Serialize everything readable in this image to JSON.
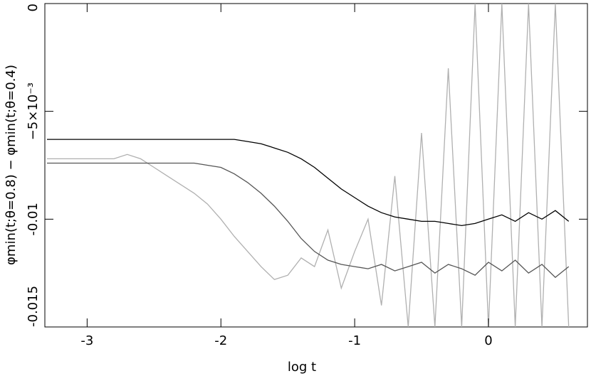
{
  "chart_data": {
    "type": "line",
    "x_label": "log t",
    "y_label": "φmin(t;θ=0.8) − φmin(t;θ=0.4)",
    "xlim": [
      -3.316,
      0.74
    ],
    "ylim": [
      -0.015,
      0
    ],
    "xticks": [
      -3,
      -2,
      -1,
      0
    ],
    "yticks": [
      -0.015,
      -0.01,
      {
        "value": -0.005,
        "label": "−5×10⁻³"
      },
      0
    ],
    "x": [
      -3.3,
      -3.2,
      -3.1,
      -3.0,
      -2.9,
      -2.8,
      -2.7,
      -2.6,
      -2.5,
      -2.4,
      -2.3,
      -2.2,
      -2.1,
      -2.0,
      -1.9,
      -1.8,
      -1.7,
      -1.6,
      -1.5,
      -1.4,
      -1.3,
      -1.2,
      -1.1,
      -1.0,
      -0.9,
      -0.8,
      -0.7,
      -0.6,
      -0.5,
      -0.4,
      -0.3,
      -0.2,
      -0.1,
      0,
      0.1,
      0.2,
      0.3,
      0.4,
      0.5,
      0.6
    ],
    "series": [
      {
        "color": "#b0b0b0",
        "values": [
          -0.0072,
          -0.0072,
          -0.0072,
          -0.0072,
          -0.0072,
          -0.0072,
          -0.007,
          -0.0072,
          -0.0076,
          -0.008,
          -0.0084,
          -0.0088,
          -0.0093,
          -0.01,
          -0.0108,
          -0.0115,
          -0.0122,
          -0.0128,
          -0.0126,
          -0.0118,
          -0.0122,
          -0.0105,
          -0.0132,
          -0.0115,
          -0.01,
          -0.014,
          -0.008,
          -0.015,
          -0.006,
          -0.015,
          -0.003,
          -0.015,
          0,
          -0.015,
          0,
          -0.015,
          0,
          -0.015,
          0,
          -0.015
        ]
      },
      {
        "color": "#555555",
        "values": [
          -0.0074,
          -0.0074,
          -0.0074,
          -0.0074,
          -0.0074,
          -0.0074,
          -0.0074,
          -0.0074,
          -0.0074,
          -0.0074,
          -0.0074,
          -0.0074,
          -0.0075,
          -0.0076,
          -0.0079,
          -0.0083,
          -0.0088,
          -0.0094,
          -0.0101,
          -0.0109,
          -0.0115,
          -0.0119,
          -0.0121,
          -0.0122,
          -0.0123,
          -0.0121,
          -0.0124,
          -0.0122,
          -0.012,
          -0.0125,
          -0.0121,
          -0.0123,
          -0.0126,
          -0.012,
          -0.0124,
          -0.0119,
          -0.0125,
          -0.0121,
          -0.0127,
          -0.0122
        ]
      },
      {
        "color": "#000000",
        "values": [
          -0.0063,
          -0.0063,
          -0.0063,
          -0.0063,
          -0.0063,
          -0.0063,
          -0.0063,
          -0.0063,
          -0.0063,
          -0.0063,
          -0.0063,
          -0.0063,
          -0.0063,
          -0.0063,
          -0.0063,
          -0.0064,
          -0.0065,
          -0.0067,
          -0.0069,
          -0.0072,
          -0.0076,
          -0.0081,
          -0.0086,
          -0.009,
          -0.0094,
          -0.0097,
          -0.0099,
          -0.01,
          -0.0101,
          -0.0101,
          -0.0102,
          -0.0103,
          -0.0102,
          -0.01,
          -0.0098,
          -0.0101,
          -0.0097,
          -0.01,
          -0.0096,
          -0.0101
        ]
      }
    ]
  }
}
